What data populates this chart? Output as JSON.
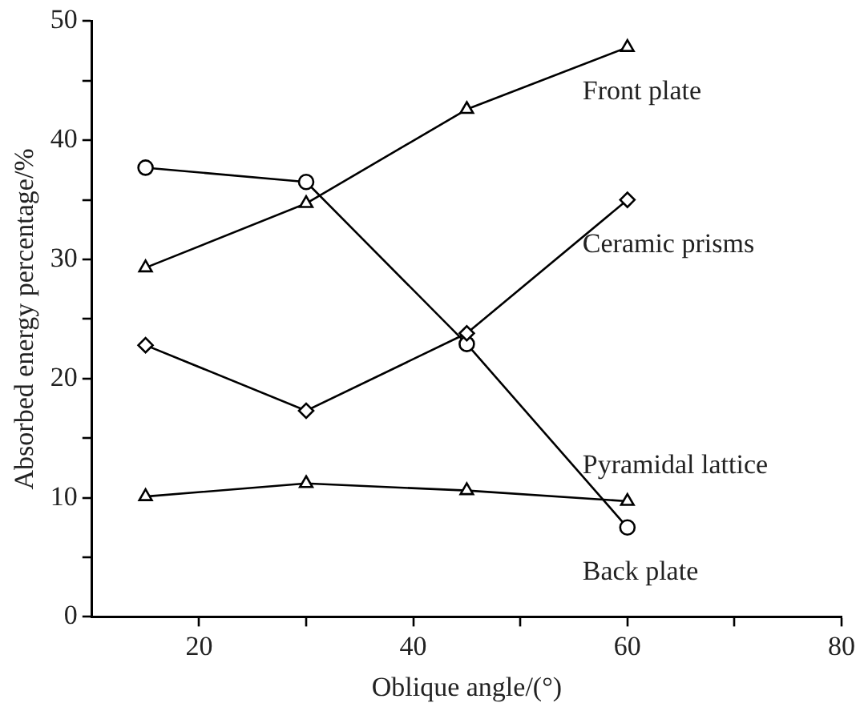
{
  "chart_data": {
    "type": "line",
    "xlabel": "Oblique angle/(°)",
    "ylabel": "Absorbed energy percentage/%",
    "xlim": [
      10,
      80
    ],
    "xticks": [
      20,
      {
        "value": 30,
        "label": null
      },
      40,
      {
        "value": 50,
        "label": null
      },
      60,
      {
        "value": 70,
        "label": null
      },
      80
    ],
    "ylim": [
      0,
      50
    ],
    "yticks": [
      0,
      {
        "value": 5,
        "label": null
      },
      10,
      {
        "value": 15,
        "label": null
      },
      20,
      {
        "value": 25,
        "label": null
      },
      30,
      {
        "value": 35,
        "label": null
      },
      40,
      {
        "value": 45,
        "label": null
      },
      50
    ],
    "x": [
      15,
      30,
      45,
      60
    ],
    "grid": false,
    "legend": false,
    "line_style": "solid",
    "series": [
      {
        "name": "Front plate",
        "color": "#000000",
        "marker": "triangle",
        "values": [
          29.3,
          34.7,
          42.6,
          47.8
        ]
      },
      {
        "name": "Ceramic prisms",
        "color": "#000000",
        "marker": "diamond",
        "values": [
          22.8,
          17.3,
          23.8,
          35.0
        ]
      },
      {
        "name": "Pyramidal lattice",
        "color": "#000000",
        "marker": "triangle",
        "values": [
          10.1,
          11.2,
          10.6,
          9.7
        ]
      },
      {
        "name": "Back plate",
        "color": "#000000",
        "marker": "circle",
        "values": [
          37.7,
          36.5,
          22.9,
          7.5
        ]
      }
    ]
  }
}
